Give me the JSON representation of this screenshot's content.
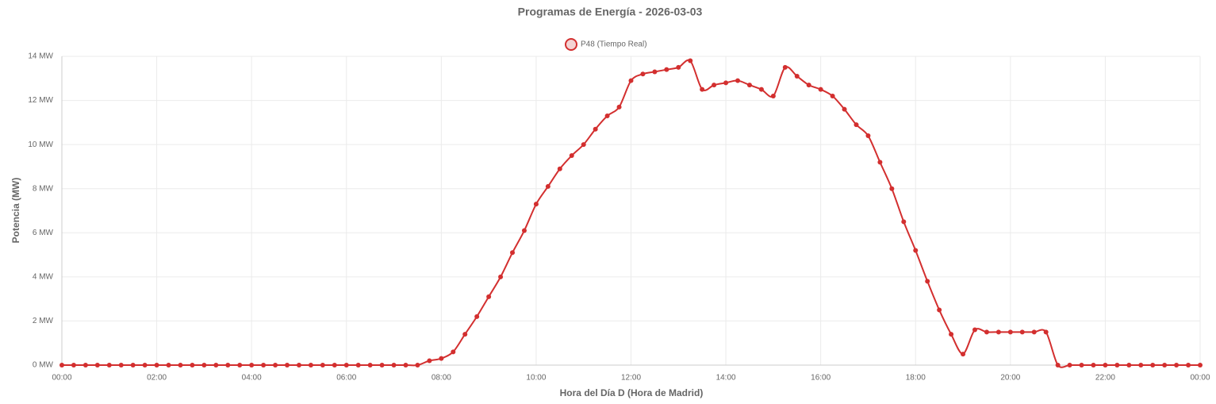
{
  "chart_data": {
    "type": "line",
    "title": "Programas de Energía - 2026-03-03",
    "xlabel": "Hora del Día D (Hora de Madrid)",
    "ylabel": "Potencia (MW)",
    "x": [
      0,
      0.25,
      0.5,
      0.75,
      1,
      1.25,
      1.5,
      1.75,
      2,
      2.25,
      2.5,
      2.75,
      3,
      3.25,
      3.5,
      3.75,
      4,
      4.25,
      4.5,
      4.75,
      5,
      5.25,
      5.5,
      5.75,
      6,
      6.25,
      6.5,
      6.75,
      7,
      7.25,
      7.5,
      7.75,
      8,
      8.25,
      8.5,
      8.75,
      9,
      9.25,
      9.5,
      9.75,
      10,
      10.25,
      10.5,
      10.75,
      11,
      11.25,
      11.5,
      11.75,
      12,
      12.25,
      12.5,
      12.75,
      13,
      13.25,
      13.5,
      13.75,
      14,
      14.25,
      14.5,
      14.75,
      15,
      15.25,
      15.5,
      15.75,
      16,
      16.25,
      16.5,
      16.75,
      17,
      17.25,
      17.5,
      17.75,
      18,
      18.25,
      18.5,
      18.75,
      19,
      19.25,
      19.5,
      19.75,
      20,
      20.25,
      20.5,
      20.75,
      21,
      21.25,
      21.5,
      21.75,
      22,
      22.25,
      22.5,
      22.75,
      23,
      23.25,
      23.5,
      23.75,
      24
    ],
    "series": [
      {
        "name": "P48 (Tiempo Real)",
        "color": "#d32f2f",
        "values": [
          0,
          0,
          0,
          0,
          0,
          0,
          0,
          0,
          0,
          0,
          0,
          0,
          0,
          0,
          0,
          0,
          0,
          0,
          0,
          0,
          0,
          0,
          0,
          0,
          0,
          0,
          0,
          0,
          0,
          0,
          0,
          0.2,
          0.3,
          0.6,
          1.4,
          2.2,
          3.1,
          4.0,
          5.1,
          6.1,
          7.3,
          8.1,
          8.9,
          9.5,
          10.0,
          10.7,
          11.3,
          11.7,
          12.9,
          13.2,
          13.3,
          13.4,
          13.5,
          13.8,
          12.5,
          12.7,
          12.8,
          12.9,
          12.7,
          12.5,
          12.2,
          13.5,
          13.1,
          12.7,
          12.5,
          12.2,
          11.6,
          10.9,
          10.4,
          9.2,
          8.0,
          6.5,
          5.2,
          3.8,
          2.5,
          1.4,
          0.5,
          1.6,
          1.5,
          1.5,
          1.5,
          1.5,
          1.5,
          1.5,
          0,
          0,
          0,
          0,
          0,
          0,
          0,
          0,
          0,
          0,
          0,
          0,
          0
        ]
      }
    ],
    "xlim": [
      0,
      24
    ],
    "xticks": [
      {
        "value": 0,
        "label": "00:00"
      },
      {
        "value": 2,
        "label": "02:00"
      },
      {
        "value": 4,
        "label": "04:00"
      },
      {
        "value": 6,
        "label": "06:00"
      },
      {
        "value": 8,
        "label": "08:00"
      },
      {
        "value": 10,
        "label": "10:00"
      },
      {
        "value": 12,
        "label": "12:00"
      },
      {
        "value": 14,
        "label": "14:00"
      },
      {
        "value": 16,
        "label": "16:00"
      },
      {
        "value": 18,
        "label": "18:00"
      },
      {
        "value": 20,
        "label": "20:00"
      },
      {
        "value": 22,
        "label": "22:00"
      },
      {
        "value": 24,
        "label": "00:00"
      }
    ],
    "ylim": [
      0,
      14
    ],
    "yticks": [
      {
        "value": 0,
        "label": "0 MW"
      },
      {
        "value": 2,
        "label": "2 MW"
      },
      {
        "value": 4,
        "label": "4 MW"
      },
      {
        "value": 6,
        "label": "6 MW"
      },
      {
        "value": 8,
        "label": "8 MW"
      },
      {
        "value": 10,
        "label": "10 MW"
      },
      {
        "value": 12,
        "label": "12 MW"
      },
      {
        "value": 14,
        "label": "14 MW"
      }
    ],
    "grid": true,
    "legend": "top"
  }
}
